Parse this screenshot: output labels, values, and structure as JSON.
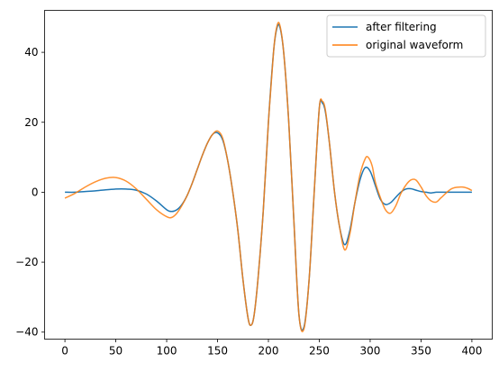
{
  "chart_data": {
    "type": "line",
    "title": "",
    "xlabel": "",
    "ylabel": "",
    "xlim": [
      -20,
      420
    ],
    "ylim": [
      -42,
      52
    ],
    "xticks": [
      0,
      50,
      100,
      150,
      200,
      250,
      300,
      350,
      400
    ],
    "yticks": [
      -40,
      -20,
      0,
      20,
      40
    ],
    "grid": false,
    "legend_position": "top-right",
    "series": [
      {
        "name": "after filtering",
        "color": "#1f77b4",
        "x": [
          0,
          10,
          20,
          30,
          40,
          50,
          60,
          70,
          80,
          90,
          100,
          105,
          110,
          115,
          120,
          125,
          130,
          135,
          140,
          145,
          150,
          155,
          160,
          165,
          170,
          175,
          180,
          183,
          186,
          190,
          195,
          200,
          205,
          208,
          211,
          215,
          220,
          225,
          230,
          235,
          240,
          245,
          250,
          253,
          256,
          260,
          265,
          270,
          275,
          280,
          285,
          290,
          295,
          300,
          305,
          310,
          315,
          320,
          325,
          330,
          335,
          340,
          345,
          350,
          355,
          360,
          365,
          370,
          380,
          390,
          400
        ],
        "y": [
          0,
          0,
          0.2,
          0.4,
          0.7,
          0.9,
          0.9,
          0.6,
          -0.5,
          -2.5,
          -5,
          -5.5,
          -5,
          -3.5,
          -1,
          2.5,
          6.5,
          10.5,
          14,
          16.5,
          17,
          15,
          9,
          0,
          -11,
          -25,
          -36,
          -38,
          -35,
          -24,
          -5,
          20,
          40,
          46.5,
          47.5,
          40,
          20,
          -8,
          -35,
          -38.5,
          -25,
          0,
          24,
          25.5,
          23,
          14,
          0,
          -10,
          -15,
          -11,
          -3,
          3.5,
          7,
          6,
          2,
          -2,
          -3.5,
          -3,
          -1.5,
          0,
          0.9,
          1,
          0.6,
          0.2,
          0,
          -0.2,
          0,
          0,
          0,
          0,
          0
        ]
      },
      {
        "name": "original waveform",
        "color": "#ff7f0e",
        "x": [
          0,
          10,
          20,
          30,
          40,
          50,
          60,
          70,
          80,
          90,
          100,
          105,
          110,
          115,
          120,
          125,
          130,
          135,
          140,
          145,
          150,
          155,
          160,
          165,
          170,
          175,
          180,
          183,
          186,
          190,
          195,
          200,
          205,
          208,
          211,
          215,
          220,
          225,
          230,
          235,
          240,
          245,
          250,
          253,
          256,
          260,
          265,
          270,
          275,
          280,
          285,
          290,
          295,
          298,
          302,
          305,
          310,
          315,
          320,
          325,
          330,
          335,
          340,
          345,
          350,
          355,
          360,
          365,
          370,
          380,
          390,
          395,
          400
        ],
        "y": [
          -1.7,
          -0.3,
          1.5,
          3,
          4,
          4.2,
          3.2,
          1,
          -2,
          -5,
          -7,
          -7.2,
          -6,
          -3.8,
          -1,
          2.5,
          6.5,
          10.5,
          14,
          16.5,
          17.5,
          15.5,
          9,
          0,
          -11,
          -25,
          -36,
          -38,
          -35,
          -24,
          -5,
          20,
          40,
          47,
          48,
          40,
          20,
          -8,
          -35,
          -39,
          -25,
          0,
          24,
          26,
          23.5,
          14,
          0,
          -10,
          -16.5,
          -12,
          -3,
          5,
          9.5,
          10,
          7.5,
          3,
          -1.5,
          -5,
          -6,
          -4,
          -0.5,
          2,
          3.5,
          3.5,
          1.5,
          -1,
          -2.5,
          -2.8,
          -1.5,
          1,
          1.5,
          1.2,
          0.5
        ]
      }
    ]
  }
}
